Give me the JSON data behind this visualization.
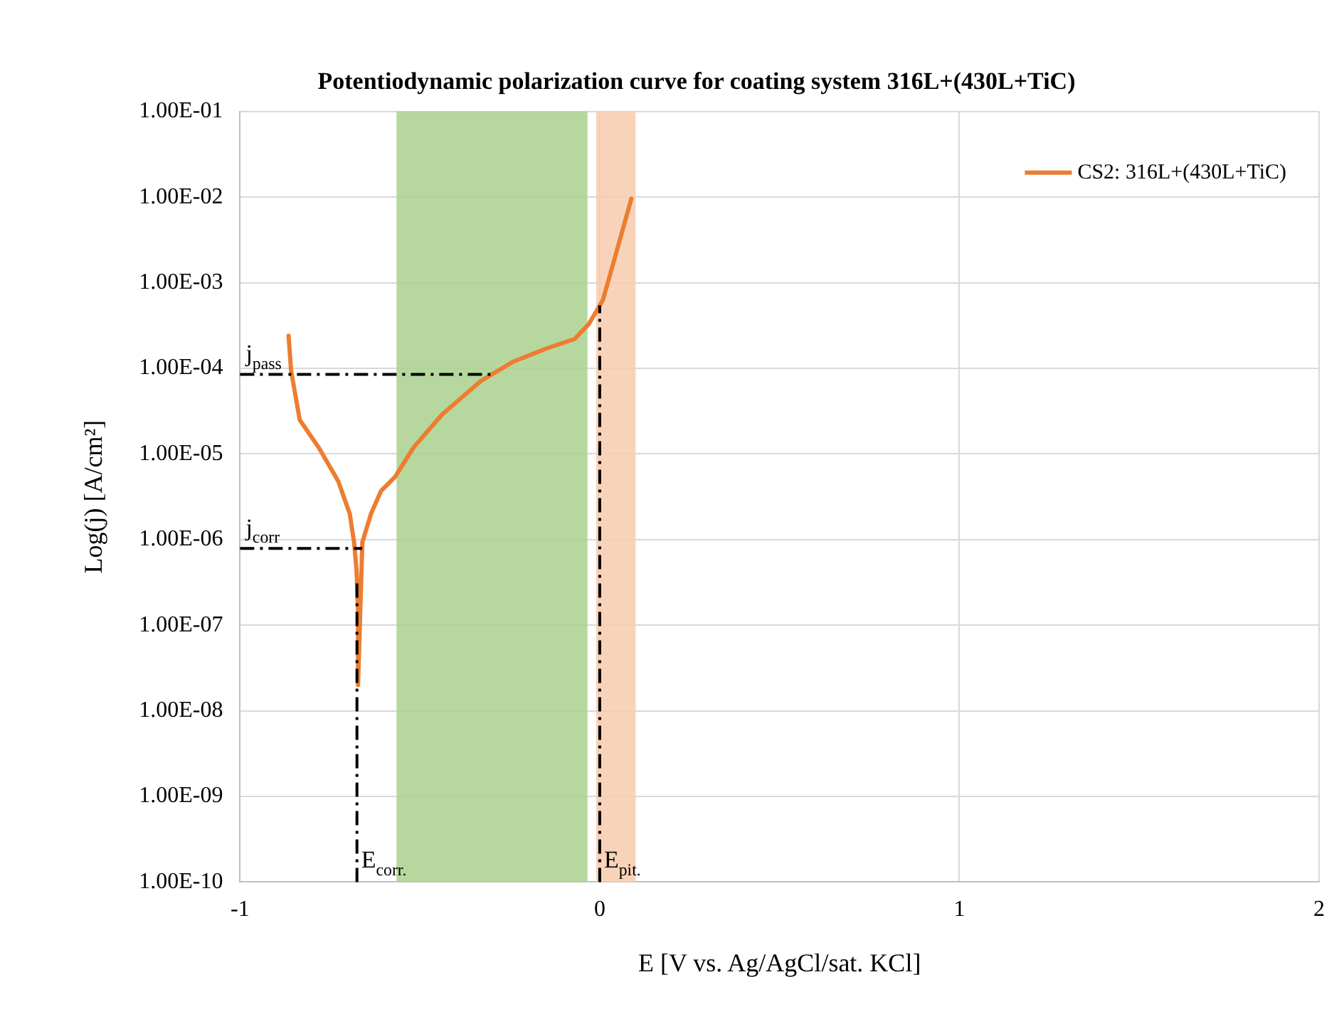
{
  "chart_data": {
    "type": "line",
    "title": "Potentiodynamic polarization curve for coating system 316L+(430L+TiC)",
    "xlabel": "E [V vs. Ag/AgCl/sat. KCl]",
    "ylabel": "Log(j) [A/cm²]",
    "x": [
      -0.865,
      -0.858,
      -0.834,
      -0.782,
      -0.727,
      -0.695,
      -0.683,
      -0.676,
      -0.672,
      -0.672,
      -0.66,
      -0.636,
      -0.608,
      -0.569,
      -0.517,
      -0.438,
      -0.331,
      -0.24,
      -0.149,
      -0.07,
      -0.03,
      0.009,
      0.049,
      0.088
    ],
    "series": [
      {
        "name": "CS2: 316L+(430L+TiC)",
        "color": "#ed7d31",
        "values": [
          0.00024,
          9.3e-05,
          2.5e-05,
          1.2e-05,
          4.8e-06,
          2e-06,
          9.3e-07,
          4.3e-07,
          1.5e-07,
          2e-08,
          9.3e-07,
          2e-06,
          3.7e-06,
          5.4e-06,
          1.2e-05,
          2.9e-05,
          7.1e-05,
          0.00012,
          0.00017,
          0.00022,
          0.00033,
          0.00063,
          0.0025,
          0.0096
        ]
      }
    ],
    "log": "y",
    "xlim": [
      -1,
      2
    ],
    "xticks": [
      -1,
      0,
      1,
      2
    ],
    "ylim": [
      1e-10,
      0.1
    ],
    "yticks": [
      {
        "value": 1e-10,
        "label": "1.00E-10"
      },
      {
        "value": 1e-09,
        "label": "1.00E-09"
      },
      {
        "value": 1e-08,
        "label": "1.00E-08"
      },
      {
        "value": 1e-07,
        "label": "1.00E-07"
      },
      {
        "value": 1e-06,
        "label": "1.00E-06"
      },
      {
        "value": 1e-05,
        "label": "1.00E-05"
      },
      {
        "value": 0.0001,
        "label": "1.00E-04"
      },
      {
        "value": 0.001,
        "label": "1.00E-03"
      },
      {
        "value": 0.01,
        "label": "1.00E-02"
      },
      {
        "value": 0.1,
        "label": "1.00E-01"
      }
    ],
    "grid": true,
    "legend": "top right",
    "marker": "none",
    "line_style": "solid",
    "bands": [
      {
        "axis": "x",
        "from": -0.565,
        "to": -0.034,
        "color": "#a9d18e"
      },
      {
        "axis": "x",
        "from": -0.01,
        "to": 0.1,
        "color": "#f8cbad"
      }
    ],
    "ref_lines": [
      {
        "axis": "y",
        "value": 8.5e-05,
        "label": "j$_{pass}$",
        "line_style": "dashdot"
      },
      {
        "axis": "y",
        "value": 7.9e-07,
        "label": "j$_{corr}$",
        "line_style": "dashdot"
      },
      {
        "axis": "x",
        "value": -0.675,
        "label": "E$_{corr.}$",
        "line_style": "dashdot"
      },
      {
        "axis": "x",
        "value": 0.0,
        "label": "E$_{pit.}$",
        "line_style": "dashdot"
      }
    ]
  }
}
